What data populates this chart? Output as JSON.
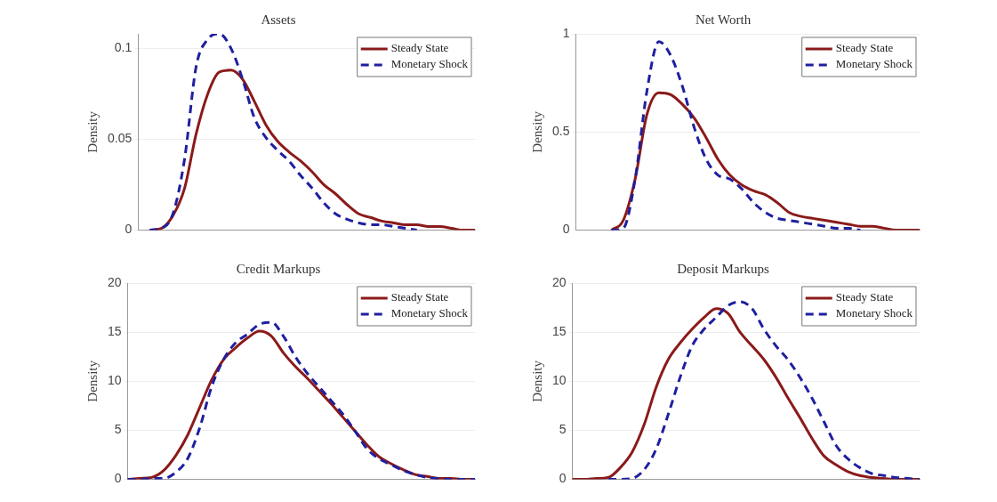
{
  "chart_data": [
    {
      "type": "line",
      "title": "Assets",
      "ylabel": "Density",
      "categories": [
        null,
        null,
        null,
        null,
        null,
        null,
        null,
        null,
        null,
        null,
        null,
        null,
        null,
        null,
        null,
        null,
        null,
        null,
        null,
        null,
        null,
        null,
        null,
        null,
        null,
        null,
        null,
        null,
        null,
        null
      ],
      "ylim": [
        0,
        0.108
      ],
      "yticks": [
        0,
        0.05,
        0.1
      ],
      "grid": "y",
      "legend": "top right",
      "tick_labels": "y",
      "marker": "none",
      "series": [
        {
          "name": "Steady State",
          "color": "#8b1a1a",
          "line_style": "solid",
          "values": [
            null,
            0,
            0.001,
            0.008,
            0.023,
            0.053,
            0.075,
            0.087,
            0.088,
            0.083,
            0.071,
            0.058,
            0.049,
            0.043,
            0.038,
            0.032,
            0.025,
            0.02,
            0.014,
            0.009,
            0.007,
            0.005,
            0.004,
            0.003,
            0.003,
            0.002,
            0.002,
            0.001,
            0,
            0
          ]
        },
        {
          "name": "Monetary Shock",
          "color": "#1f1fa0",
          "line_style": "dashed",
          "values": [
            null,
            0,
            0.001,
            0.009,
            0.039,
            0.09,
            0.105,
            0.108,
            0.1,
            0.083,
            0.062,
            0.051,
            0.044,
            0.038,
            0.03,
            0.023,
            0.015,
            0.009,
            0.006,
            0.004,
            0.003,
            0.003,
            0.002,
            0.001,
            0,
            null,
            null,
            null,
            null,
            null
          ]
        }
      ]
    },
    {
      "type": "line",
      "title": "Net Worth",
      "ylabel": "Density",
      "categories": [
        null,
        null,
        null,
        null,
        null,
        null,
        null,
        null,
        null,
        null,
        null,
        null,
        null,
        null,
        null,
        null,
        null,
        null,
        null,
        null,
        null,
        null,
        null,
        null,
        null,
        null,
        null,
        null,
        null,
        null
      ],
      "ylim": [
        0,
        1
      ],
      "yticks": [
        0,
        0.5,
        1
      ],
      "grid": "y",
      "legend": "top right",
      "tick_labels": "y",
      "marker": "none",
      "series": [
        {
          "name": "Steady State",
          "color": "#8b1a1a",
          "line_style": "solid",
          "values": [
            null,
            null,
            null,
            0,
            0.05,
            0.26,
            0.59,
            0.7,
            0.69,
            0.64,
            0.57,
            0.47,
            0.36,
            0.28,
            0.23,
            0.2,
            0.18,
            0.14,
            0.09,
            0.07,
            0.06,
            0.05,
            0.04,
            0.03,
            0.02,
            0.02,
            0.01,
            0,
            0,
            0
          ]
        },
        {
          "name": "Monetary Shock",
          "color": "#1f1fa0",
          "line_style": "dashed",
          "values": [
            null,
            null,
            null,
            0,
            0.01,
            0.26,
            0.71,
            0.96,
            0.89,
            0.73,
            0.52,
            0.36,
            0.28,
            0.26,
            0.21,
            0.14,
            0.09,
            0.06,
            0.05,
            0.04,
            0.03,
            0.02,
            0.01,
            0.01,
            0,
            null,
            null,
            null,
            null,
            null
          ]
        }
      ]
    },
    {
      "type": "line",
      "title": "Credit Markups",
      "ylabel": "Density",
      "categories": [
        null,
        null,
        null,
        null,
        null,
        null,
        null,
        null,
        null,
        null,
        null,
        null,
        null,
        null,
        null,
        null,
        null,
        null,
        null,
        null,
        null,
        null,
        null,
        null,
        null,
        null,
        null,
        null,
        null,
        null
      ],
      "ylim": [
        0,
        20
      ],
      "yticks": [
        0,
        5,
        10,
        15,
        20
      ],
      "grid": "y",
      "legend": "top right",
      "tick_labels": "y",
      "marker": "none",
      "series": [
        {
          "name": "Steady State",
          "color": "#8b1a1a",
          "line_style": "solid",
          "values": [
            0,
            0.1,
            0.2,
            0.9,
            2.4,
            4.5,
            7.3,
            10.1,
            12.2,
            13.4,
            14.4,
            15.1,
            14.6,
            12.9,
            11.5,
            10.3,
            9,
            7.7,
            6.3,
            4.9,
            3.5,
            2.3,
            1.6,
            1,
            0.5,
            0.3,
            0.1,
            0.1,
            0,
            0
          ]
        },
        {
          "name": "Monetary Shock",
          "color": "#1f1fa0",
          "line_style": "dashed",
          "values": [
            0,
            0,
            0.1,
            0.1,
            0.7,
            2.1,
            5.2,
            9.4,
            12.2,
            13.9,
            14.8,
            15.8,
            16,
            14.6,
            12.5,
            10.8,
            9.4,
            8,
            6.6,
            4.9,
            3.1,
            2.1,
            1.5,
            0.9,
            0.5,
            0.2,
            0.1,
            0,
            0,
            0
          ]
        }
      ]
    },
    {
      "type": "line",
      "title": "Deposit Markups",
      "ylabel": "Density",
      "categories": [
        null,
        null,
        null,
        null,
        null,
        null,
        null,
        null,
        null,
        null,
        null,
        null,
        null,
        null,
        null,
        null,
        null,
        null,
        null,
        null,
        null,
        null,
        null,
        null,
        null,
        null,
        null,
        null,
        null,
        null
      ],
      "ylim": [
        0,
        20
      ],
      "yticks": [
        0,
        5,
        10,
        15,
        20
      ],
      "grid": "y",
      "legend": "top right",
      "tick_labels": "y",
      "marker": "none",
      "series": [
        {
          "name": "Steady State",
          "color": "#8b1a1a",
          "line_style": "solid",
          "values": [
            0,
            0,
            0.1,
            0.2,
            1.2,
            2.8,
            5.6,
            9.4,
            12.2,
            13.9,
            15.3,
            16.5,
            17.4,
            16.9,
            15,
            13.6,
            12.2,
            10.4,
            8.3,
            6.3,
            4.2,
            2.4,
            1.5,
            0.8,
            0.4,
            0.2,
            0.1,
            0,
            0,
            0
          ]
        },
        {
          "name": "Monetary Shock",
          "color": "#1f1fa0",
          "line_style": "dashed",
          "values": [
            null,
            null,
            null,
            0,
            0,
            0.1,
            1,
            3.1,
            6.6,
            10.4,
            13.6,
            15.3,
            16.5,
            17.7,
            18.1,
            17.4,
            15.3,
            13.6,
            12.2,
            10.4,
            8.3,
            5.9,
            3.5,
            2.1,
            1.2,
            0.6,
            0.4,
            0.2,
            0.1,
            0
          ]
        }
      ]
    }
  ]
}
